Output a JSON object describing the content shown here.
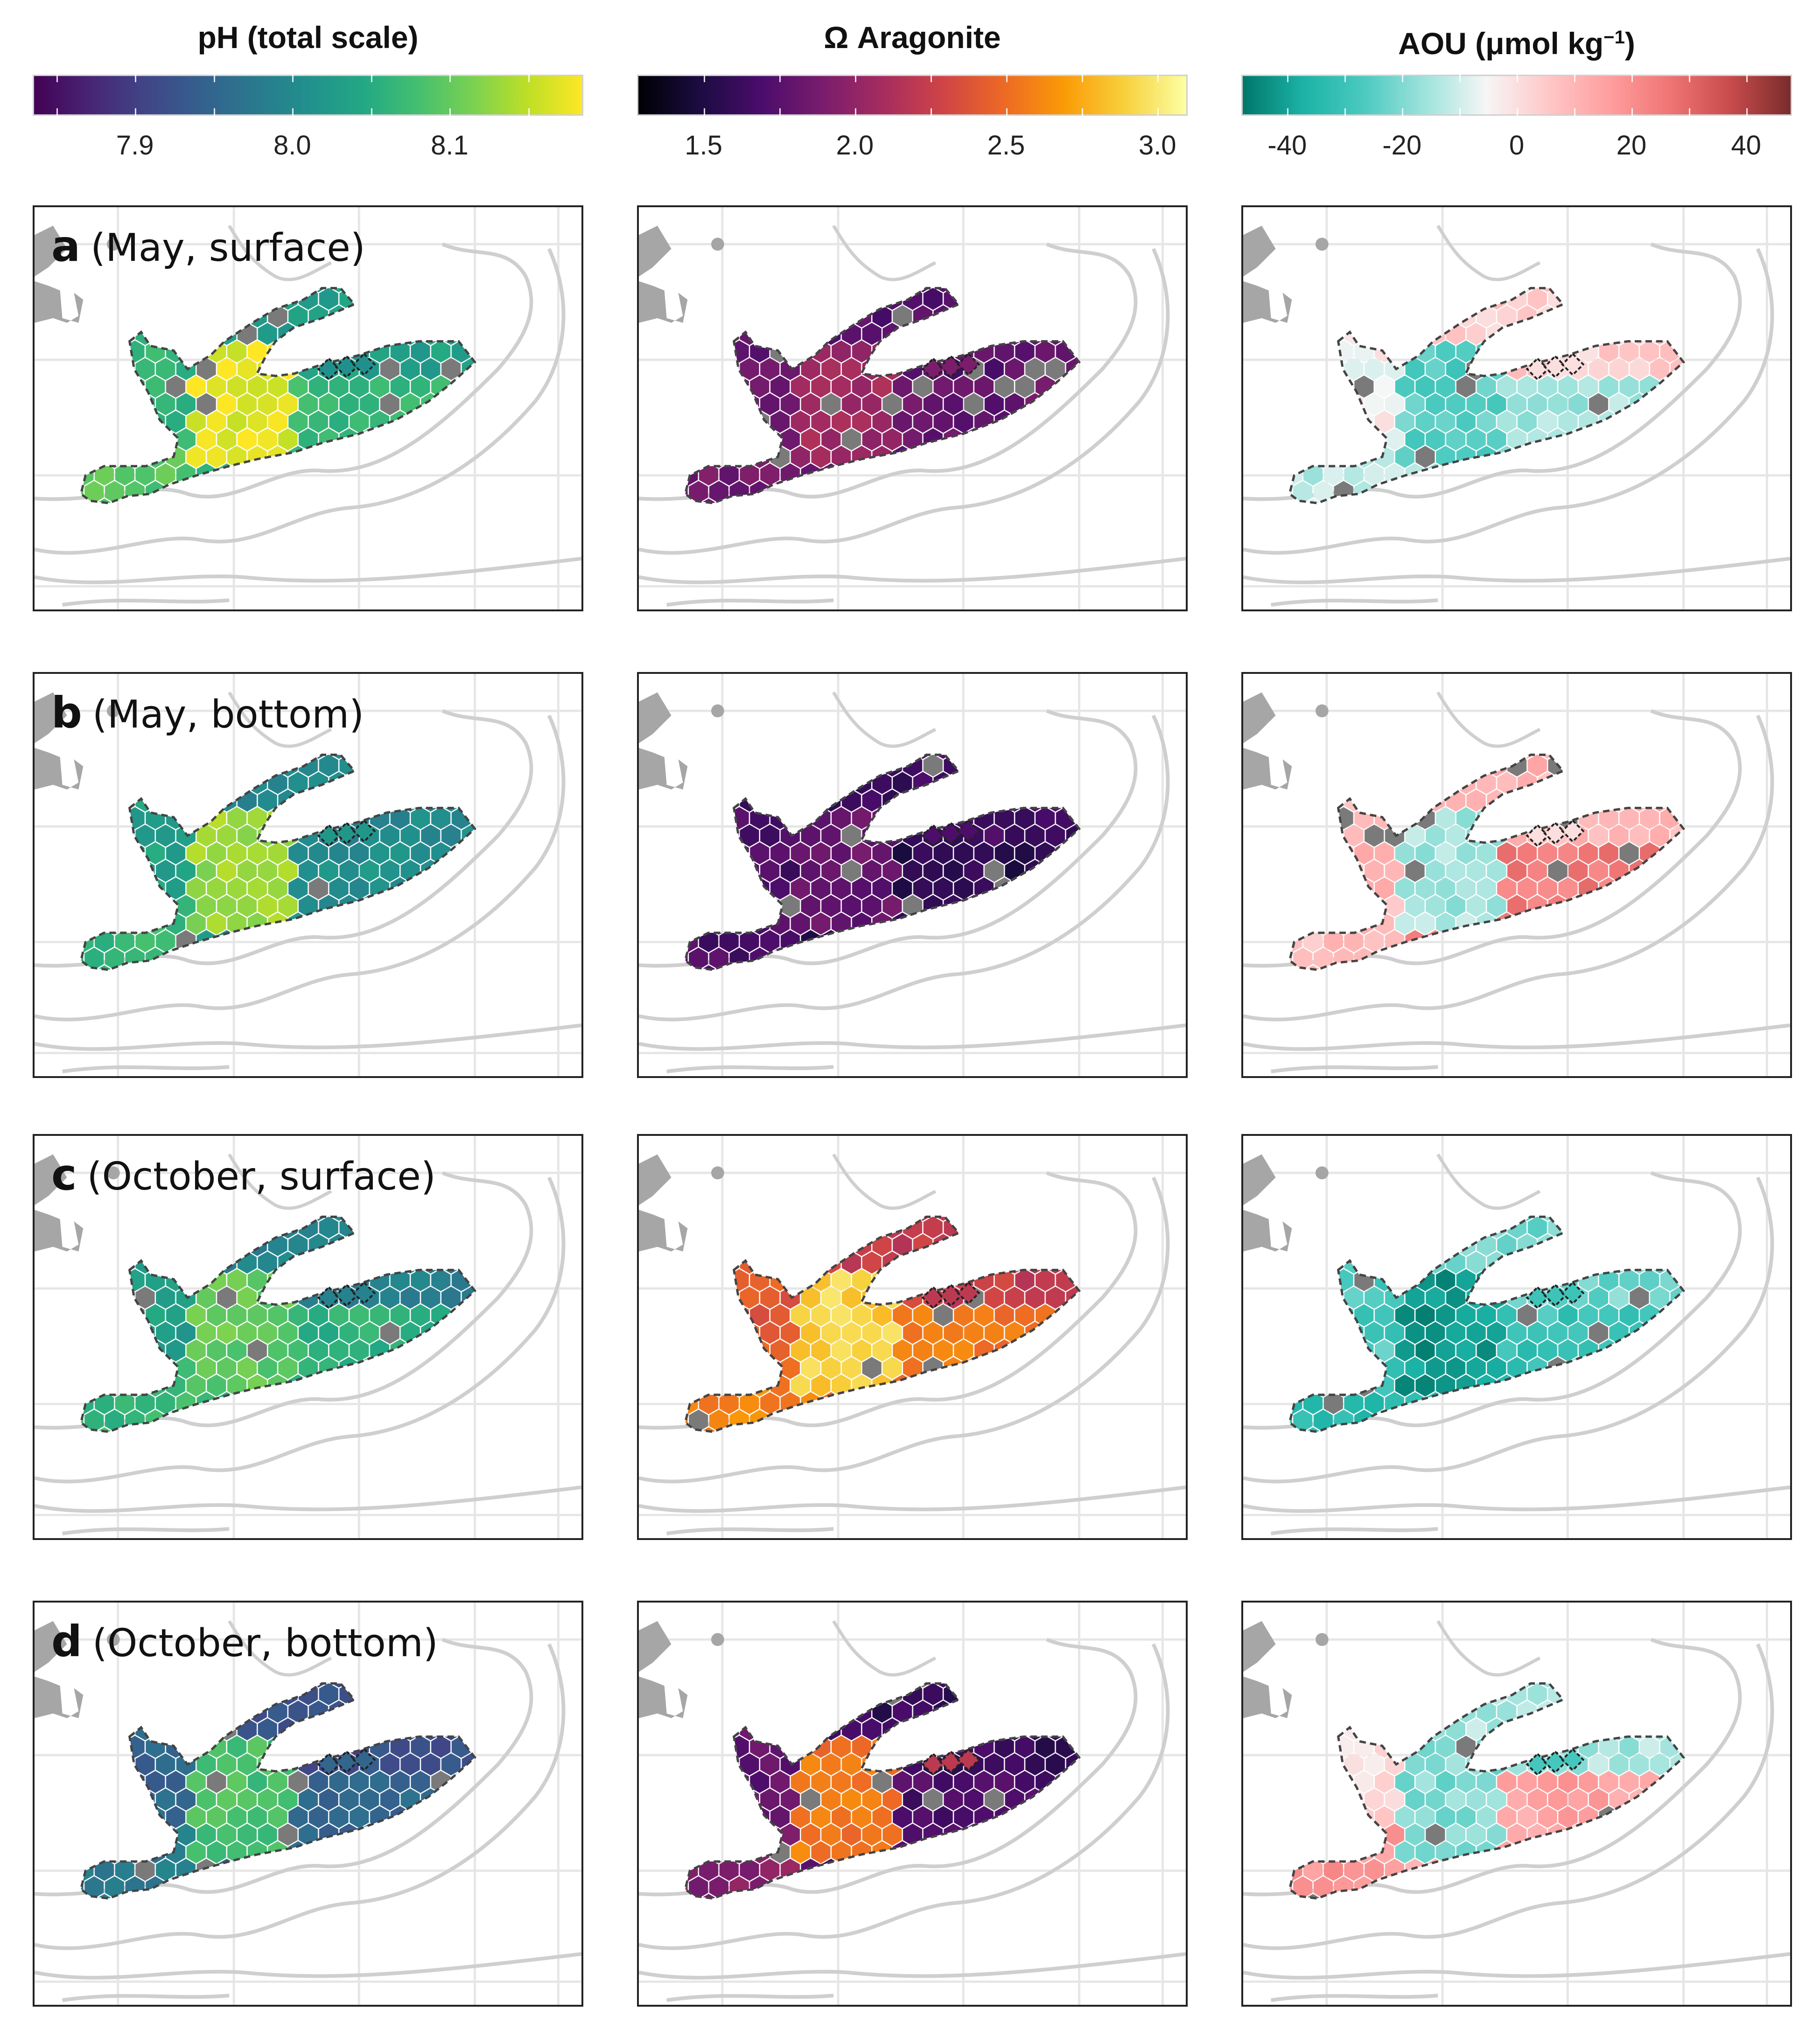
{
  "colorbars": [
    {
      "title": "pH (total scale)",
      "ticks": [
        "7.9",
        "8.0",
        "8.1"
      ],
      "tick_values": [
        7.9,
        8.0,
        8.1
      ],
      "range": [
        7.835,
        8.185
      ],
      "colors": [
        "#440154",
        "#482475",
        "#414487",
        "#355f8d",
        "#2a788e",
        "#21908d",
        "#22a884",
        "#44bf70",
        "#7ad151",
        "#bddf26",
        "#fde725"
      ]
    },
    {
      "title": "Ω Aragonite",
      "ticks": [
        "1.5",
        "2.0",
        "2.5",
        "3.0"
      ],
      "tick_values": [
        1.5,
        2.0,
        2.5,
        3.0
      ],
      "range": [
        1.28,
        3.1
      ],
      "colors": [
        "#000004",
        "#1b0c41",
        "#4a0c6b",
        "#781c6d",
        "#a52c60",
        "#cf4446",
        "#ed6925",
        "#fb9b06",
        "#f7d13d",
        "#fcffa4"
      ]
    },
    {
      "title_main": "AOU (μmol kg",
      "title_sup": "−1",
      "title_end": ")",
      "ticks": [
        "-40",
        "-20",
        "0",
        "20",
        "40"
      ],
      "tick_values": [
        -40,
        -20,
        0,
        20,
        40
      ],
      "range": [
        -48,
        48
      ],
      "colors": [
        "#00776a",
        "#1bb3a6",
        "#4ccac0",
        "#9fe3dc",
        "#f6f6f6",
        "#ffc8c8",
        "#ff9f9f",
        "#f07575",
        "#c94c4c",
        "#7a2c2c"
      ]
    }
  ],
  "row_labels": [
    {
      "letter": "a",
      "text": "(May, surface)"
    },
    {
      "letter": "b",
      "text": "(May, bottom)"
    },
    {
      "letter": "c",
      "text": "(October, surface)"
    },
    {
      "letter": "d",
      "text": "(October, bottom)"
    }
  ],
  "map_colors": {
    "land": "#a6a6a6",
    "contour": "#cfcfcf",
    "grid": "#e6e6e6",
    "missing": "#7a7a7a",
    "outline": "#444444"
  },
  "panel_values": [
    [
      {
        "variable": "pH",
        "west_gulf": 8.09,
        "south_shelf": 8.07,
        "north_channel": 8.03,
        "hotspot": 8.17,
        "islands": 8.01
      },
      {
        "variable": "Ω Aragonite",
        "west_gulf": 1.85,
        "south_shelf": 1.8,
        "north_channel": 1.75,
        "hotspot": 2.05,
        "islands": 1.9
      },
      {
        "variable": "AOU",
        "west_gulf": -12,
        "south_shelf": -15,
        "north_channel": 4,
        "hotspot": -25,
        "islands": 0
      }
    ],
    [
      {
        "variable": "pH",
        "west_gulf": 8.07,
        "south_shelf": 8.01,
        "north_channel": 8.0,
        "hotspot": 8.13,
        "islands": 8.02
      },
      {
        "variable": "Ω Aragonite",
        "west_gulf": 1.7,
        "south_shelf": 1.55,
        "north_channel": 1.65,
        "hotspot": 1.8,
        "islands": 1.7
      },
      {
        "variable": "AOU",
        "west_gulf": 8,
        "south_shelf": 25,
        "north_channel": 10,
        "hotspot": -15,
        "islands": 0
      }
    ],
    [
      {
        "variable": "pH",
        "west_gulf": 8.07,
        "south_shelf": 8.06,
        "north_channel": 7.99,
        "hotspot": 8.1,
        "islands": 7.99
      },
      {
        "variable": "Ω Aragonite",
        "west_gulf": 2.6,
        "south_shelf": 2.55,
        "north_channel": 2.25,
        "hotspot": 2.9,
        "islands": 2.2
      },
      {
        "variable": "AOU",
        "west_gulf": -32,
        "south_shelf": -30,
        "north_channel": -22,
        "hotspot": -42,
        "islands": -30
      }
    ],
    [
      {
        "variable": "pH",
        "west_gulf": 7.98,
        "south_shelf": 7.95,
        "north_channel": 7.92,
        "hotspot": 8.08,
        "islands": 7.95
      },
      {
        "variable": "Ω Aragonite",
        "west_gulf": 1.95,
        "south_shelf": 1.7,
        "north_channel": 1.6,
        "hotspot": 2.55,
        "islands": 2.2
      },
      {
        "variable": "AOU",
        "west_gulf": 18,
        "south_shelf": 15,
        "north_channel": -15,
        "hotspot": -20,
        "islands": -28
      }
    ]
  ]
}
